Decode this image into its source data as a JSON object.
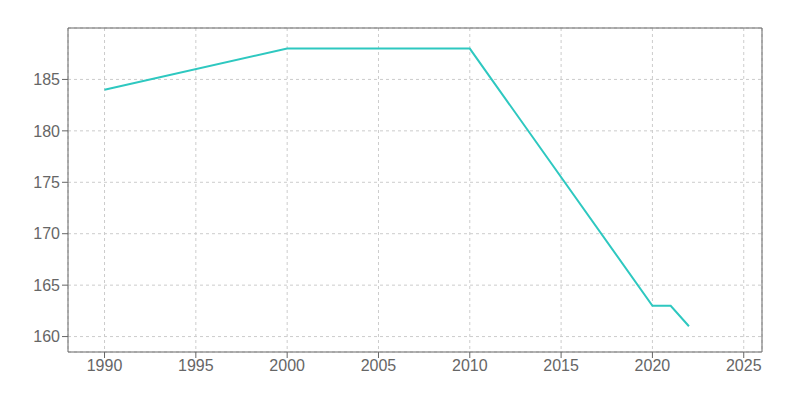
{
  "chart_data": {
    "type": "line",
    "x": [
      1990,
      2000,
      2010,
      2020,
      2021,
      2022
    ],
    "values": [
      184,
      188,
      188,
      163,
      163,
      161
    ],
    "color": "#2ec8c0",
    "xlim": [
      1988,
      2026
    ],
    "ylim": [
      158.5,
      190
    ],
    "xticks": [
      1990,
      1995,
      2000,
      2005,
      2010,
      2015,
      2020,
      2025
    ],
    "yticks": [
      160,
      165,
      170,
      175,
      180,
      185
    ],
    "grid": true
  }
}
